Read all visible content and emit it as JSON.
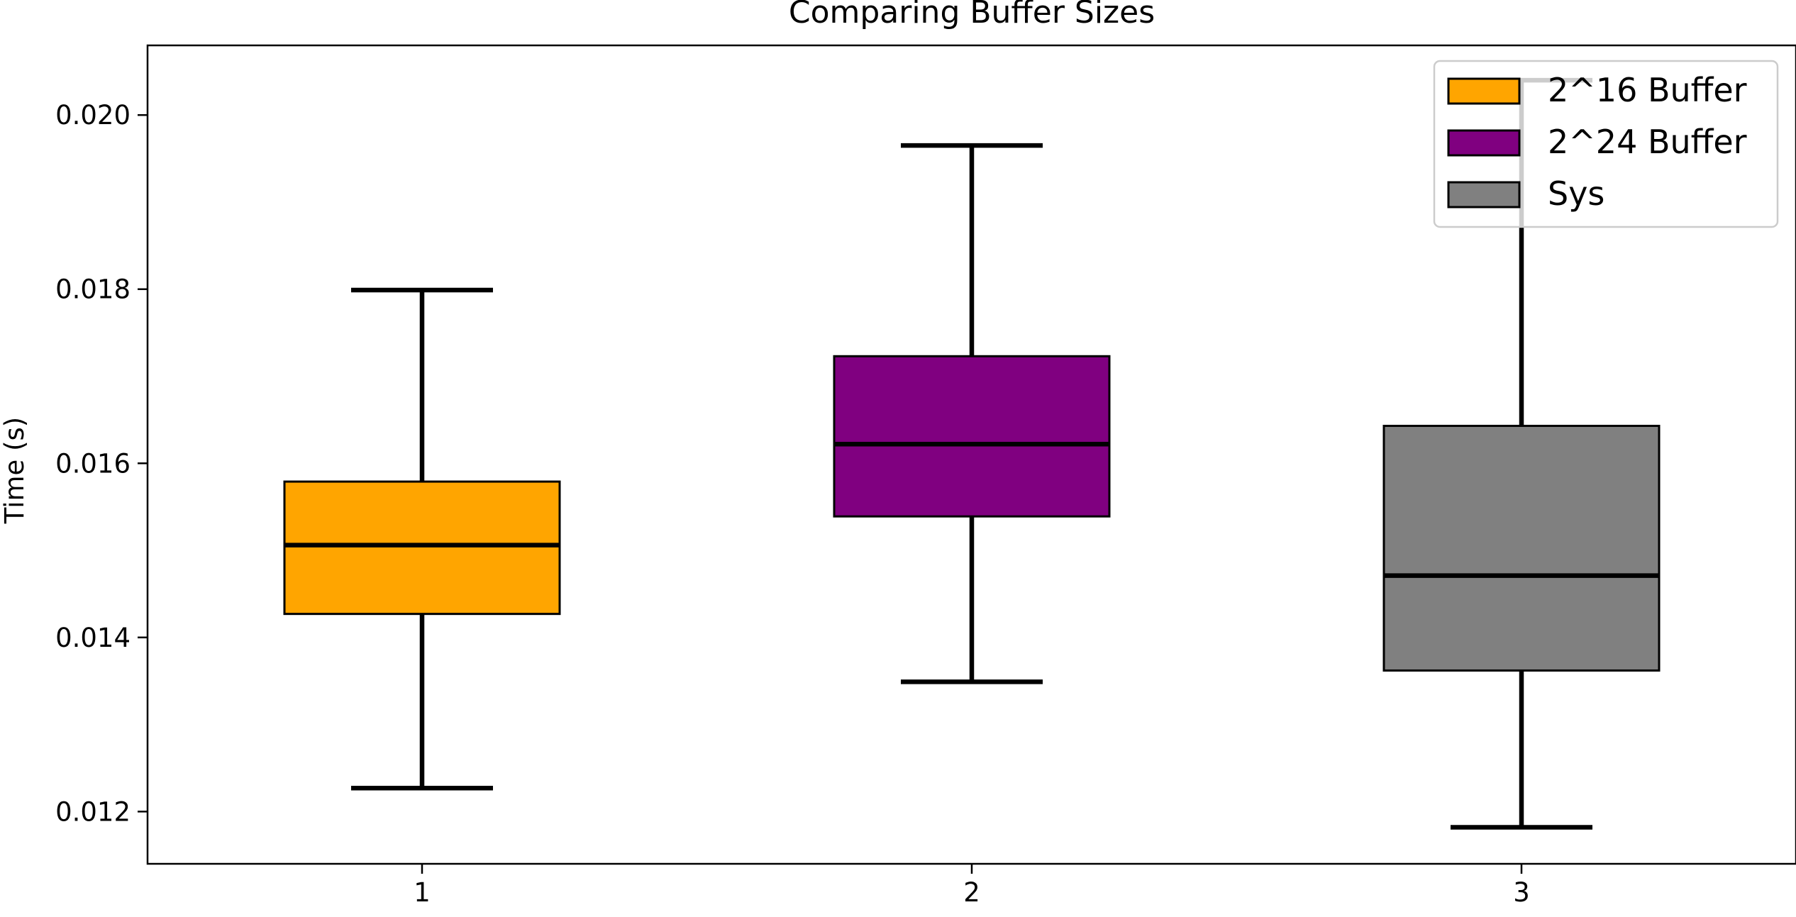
{
  "chart_data": {
    "type": "box",
    "title": "Comparing Buffer Sizes",
    "xlabel": "",
    "ylabel": "Time (s)",
    "categories": [
      "1",
      "2",
      "3"
    ],
    "ylim": [
      0.0114,
      0.0208
    ],
    "yticks": [
      0.012,
      0.014,
      0.016,
      0.018,
      0.02
    ],
    "ytick_labels": [
      "0.012",
      "0.014",
      "0.016",
      "0.018",
      "0.020"
    ],
    "legend": {
      "position": "top-right"
    },
    "grid": false,
    "series": [
      {
        "name": "2^16 Buffer",
        "color": "#FFA500",
        "category": "1",
        "whisker_low": 0.01227,
        "q1": 0.01427,
        "median": 0.01506,
        "q3": 0.01579,
        "whisker_high": 0.01799
      },
      {
        "name": "2^24 Buffer",
        "color": "#800080",
        "category": "2",
        "whisker_low": 0.01349,
        "q1": 0.01539,
        "median": 0.01622,
        "q3": 0.01723,
        "whisker_high": 0.01965
      },
      {
        "name": "Sys",
        "color": "#808080",
        "category": "3",
        "whisker_low": 0.01182,
        "q1": 0.01362,
        "median": 0.01471,
        "q3": 0.01643,
        "whisker_high": 0.0204
      }
    ]
  }
}
